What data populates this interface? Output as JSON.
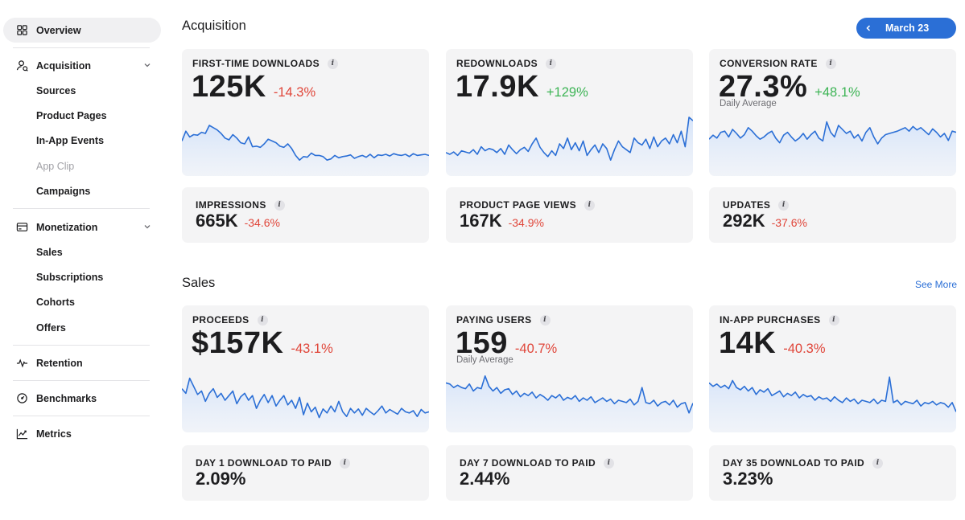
{
  "colors": {
    "accent": "#2b6fd6",
    "negative": "#e0463a",
    "positive": "#3db455",
    "line": "#2b6fd6"
  },
  "sidebar": {
    "overview": {
      "label": "Overview",
      "icon": "grid-icon"
    },
    "acquisition": {
      "label": "Acquisition",
      "icon": "person-icon",
      "items": [
        "Sources",
        "Product Pages",
        "In-App Events",
        "App Clip",
        "Campaigns"
      ]
    },
    "monetization": {
      "label": "Monetization",
      "icon": "card-icon",
      "items": [
        "Sales",
        "Subscriptions",
        "Cohorts",
        "Offers"
      ]
    },
    "retention": {
      "label": "Retention",
      "icon": "pulse-icon"
    },
    "benchmarks": {
      "label": "Benchmarks",
      "icon": "gauge-icon"
    },
    "metrics": {
      "label": "Metrics",
      "icon": "trend-icon"
    }
  },
  "header": {
    "date_label": "March 23"
  },
  "acquisition": {
    "title": "Acquisition",
    "cards": [
      {
        "label": "FIRST-TIME DOWNLOADS",
        "value": "125K",
        "delta": "-14.3%",
        "trend": "neg"
      },
      {
        "label": "REDOWNLOADS",
        "value": "17.9K",
        "delta": "+129%",
        "trend": "pos"
      },
      {
        "label": "CONVERSION RATE",
        "value": "27.3%",
        "delta": "+48.1%",
        "trend": "pos",
        "caption": "Daily Average"
      }
    ],
    "small_cards": [
      {
        "label": "IMPRESSIONS",
        "value": "665K",
        "delta": "-34.6%"
      },
      {
        "label": "PRODUCT PAGE VIEWS",
        "value": "167K",
        "delta": "-34.9%"
      },
      {
        "label": "UPDATES",
        "value": "292K",
        "delta": "-37.6%"
      }
    ]
  },
  "sales": {
    "title": "Sales",
    "see_more": "See More",
    "cards": [
      {
        "label": "PROCEEDS",
        "value": "$157K",
        "delta": "-43.1%",
        "trend": "neg"
      },
      {
        "label": "PAYING USERS",
        "value": "159",
        "delta": "-40.7%",
        "trend": "neg",
        "caption": "Daily Average"
      },
      {
        "label": "IN-APP PURCHASES",
        "value": "14K",
        "delta": "-40.3%",
        "trend": "neg"
      }
    ],
    "small_cards": [
      {
        "label": "DAY 1 DOWNLOAD TO PAID",
        "value": "2.09%"
      },
      {
        "label": "DAY 7 DOWNLOAD TO PAID",
        "value": "2.44%"
      },
      {
        "label": "DAY 35 DOWNLOAD TO PAID",
        "value": "3.23%"
      }
    ]
  },
  "info_glyph": "i",
  "sparklines": {
    "first_time_downloads": [
      0.55,
      0.72,
      0.62,
      0.66,
      0.65,
      0.7,
      0.68,
      0.82,
      0.78,
      0.74,
      0.68,
      0.6,
      0.57,
      0.66,
      0.6,
      0.52,
      0.5,
      0.62,
      0.45,
      0.46,
      0.44,
      0.5,
      0.58,
      0.55,
      0.52,
      0.46,
      0.44,
      0.5,
      0.42,
      0.3,
      0.22,
      0.28,
      0.27,
      0.34,
      0.3,
      0.3,
      0.28,
      0.22,
      0.24,
      0.3,
      0.26,
      0.28,
      0.29,
      0.31,
      0.25,
      0.28,
      0.3,
      0.27,
      0.32,
      0.26,
      0.31,
      0.3,
      0.32,
      0.29,
      0.33,
      0.31,
      0.3,
      0.32,
      0.28,
      0.33,
      0.3,
      0.31,
      0.32,
      0.3
    ],
    "redownloads": [
      0.35,
      0.32,
      0.36,
      0.3,
      0.38,
      0.36,
      0.34,
      0.4,
      0.32,
      0.45,
      0.38,
      0.42,
      0.4,
      0.35,
      0.42,
      0.32,
      0.48,
      0.4,
      0.33,
      0.4,
      0.44,
      0.37,
      0.5,
      0.6,
      0.44,
      0.35,
      0.28,
      0.38,
      0.3,
      0.5,
      0.42,
      0.6,
      0.4,
      0.52,
      0.38,
      0.55,
      0.3,
      0.4,
      0.48,
      0.35,
      0.5,
      0.42,
      0.22,
      0.4,
      0.55,
      0.45,
      0.4,
      0.35,
      0.6,
      0.52,
      0.48,
      0.58,
      0.42,
      0.62,
      0.45,
      0.55,
      0.6,
      0.5,
      0.66,
      0.52,
      0.72,
      0.45,
      0.96,
      0.9
    ],
    "conversion_rate": [
      0.58,
      0.65,
      0.6,
      0.7,
      0.72,
      0.62,
      0.75,
      0.68,
      0.6,
      0.66,
      0.78,
      0.72,
      0.64,
      0.58,
      0.62,
      0.68,
      0.72,
      0.6,
      0.52,
      0.65,
      0.7,
      0.62,
      0.55,
      0.6,
      0.68,
      0.58,
      0.66,
      0.72,
      0.6,
      0.55,
      0.88,
      0.7,
      0.62,
      0.82,
      0.75,
      0.68,
      0.72,
      0.6,
      0.66,
      0.55,
      0.7,
      0.78,
      0.62,
      0.5,
      0.6,
      0.66,
      0.68,
      0.7,
      0.72,
      0.75,
      0.78,
      0.72,
      0.8,
      0.74,
      0.78,
      0.72,
      0.66,
      0.76,
      0.7,
      0.62,
      0.68,
      0.56,
      0.72,
      0.7
    ],
    "proceeds": [
      0.7,
      0.62,
      0.88,
      0.74,
      0.6,
      0.66,
      0.48,
      0.62,
      0.7,
      0.55,
      0.62,
      0.5,
      0.58,
      0.66,
      0.44,
      0.56,
      0.62,
      0.5,
      0.58,
      0.36,
      0.5,
      0.6,
      0.46,
      0.58,
      0.4,
      0.5,
      0.58,
      0.42,
      0.5,
      0.36,
      0.55,
      0.25,
      0.45,
      0.3,
      0.38,
      0.2,
      0.35,
      0.28,
      0.4,
      0.3,
      0.48,
      0.3,
      0.22,
      0.36,
      0.28,
      0.35,
      0.24,
      0.36,
      0.3,
      0.25,
      0.32,
      0.4,
      0.28,
      0.34,
      0.3,
      0.26,
      0.36,
      0.3,
      0.28,
      0.32,
      0.22,
      0.34,
      0.28,
      0.3
    ],
    "paying_users": [
      0.8,
      0.78,
      0.72,
      0.76,
      0.72,
      0.7,
      0.78,
      0.66,
      0.72,
      0.7,
      0.92,
      0.74,
      0.66,
      0.72,
      0.62,
      0.68,
      0.7,
      0.6,
      0.66,
      0.56,
      0.62,
      0.58,
      0.64,
      0.54,
      0.6,
      0.56,
      0.5,
      0.58,
      0.54,
      0.6,
      0.5,
      0.55,
      0.52,
      0.58,
      0.48,
      0.54,
      0.5,
      0.56,
      0.46,
      0.5,
      0.54,
      0.48,
      0.52,
      0.44,
      0.5,
      0.48,
      0.46,
      0.52,
      0.42,
      0.48,
      0.72,
      0.46,
      0.44,
      0.5,
      0.4,
      0.46,
      0.48,
      0.42,
      0.5,
      0.38,
      0.44,
      0.46,
      0.28,
      0.45
    ],
    "in_app_purchases": [
      0.8,
      0.74,
      0.78,
      0.72,
      0.76,
      0.7,
      0.84,
      0.72,
      0.68,
      0.74,
      0.66,
      0.72,
      0.6,
      0.68,
      0.64,
      0.7,
      0.58,
      0.62,
      0.66,
      0.56,
      0.62,
      0.58,
      0.64,
      0.54,
      0.6,
      0.56,
      0.58,
      0.5,
      0.56,
      0.52,
      0.54,
      0.48,
      0.56,
      0.5,
      0.46,
      0.54,
      0.48,
      0.52,
      0.44,
      0.5,
      0.48,
      0.46,
      0.52,
      0.44,
      0.5,
      0.48,
      0.9,
      0.46,
      0.5,
      0.42,
      0.48,
      0.46,
      0.44,
      0.5,
      0.4,
      0.46,
      0.44,
      0.48,
      0.42,
      0.46,
      0.44,
      0.38,
      0.46,
      0.3
    ]
  }
}
